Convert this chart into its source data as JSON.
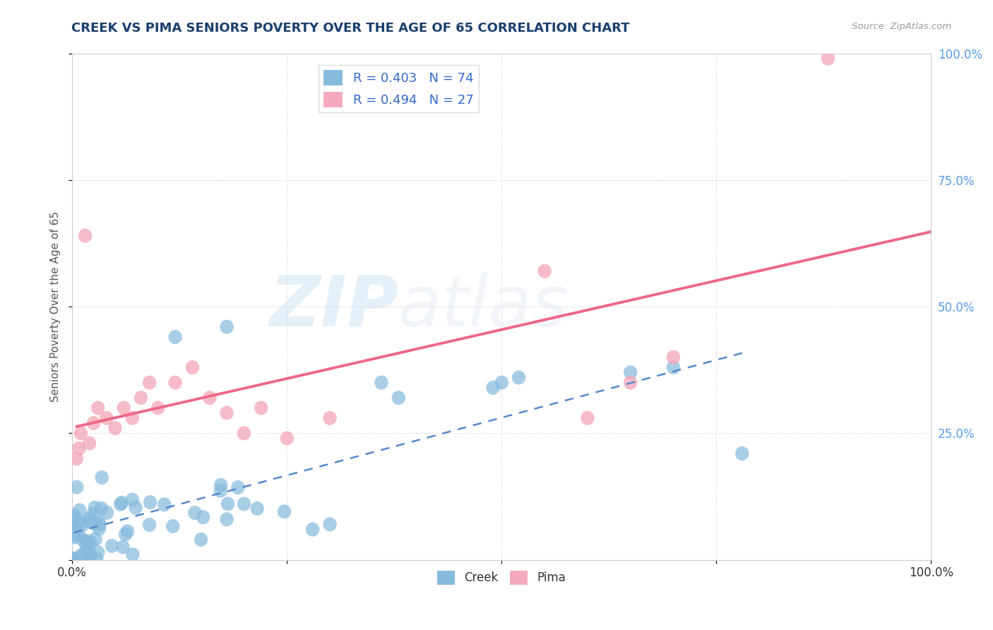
{
  "title": "CREEK VS PIMA SENIORS POVERTY OVER THE AGE OF 65 CORRELATION CHART",
  "source_text": "Source: ZipAtlas.com",
  "ylabel": "Seniors Poverty Over the Age of 65",
  "creek_label": "Creek",
  "pima_label": "Pima",
  "creek_R": 0.403,
  "creek_N": 74,
  "pima_R": 0.494,
  "pima_N": 27,
  "creek_color": "#87BBDD",
  "pima_color": "#F4AABC",
  "creek_line_color": "#5588CC",
  "pima_line_color": "#EE6688",
  "background_color": "#FFFFFF",
  "watermark_zip": "ZIP",
  "watermark_atlas": "atlas",
  "title_color": "#1A3F6F",
  "tick_color": "#5599EE",
  "ylabel_color": "#555555",
  "grid_color": "#DDDDDD",
  "legend_text_color": "#3366CC"
}
